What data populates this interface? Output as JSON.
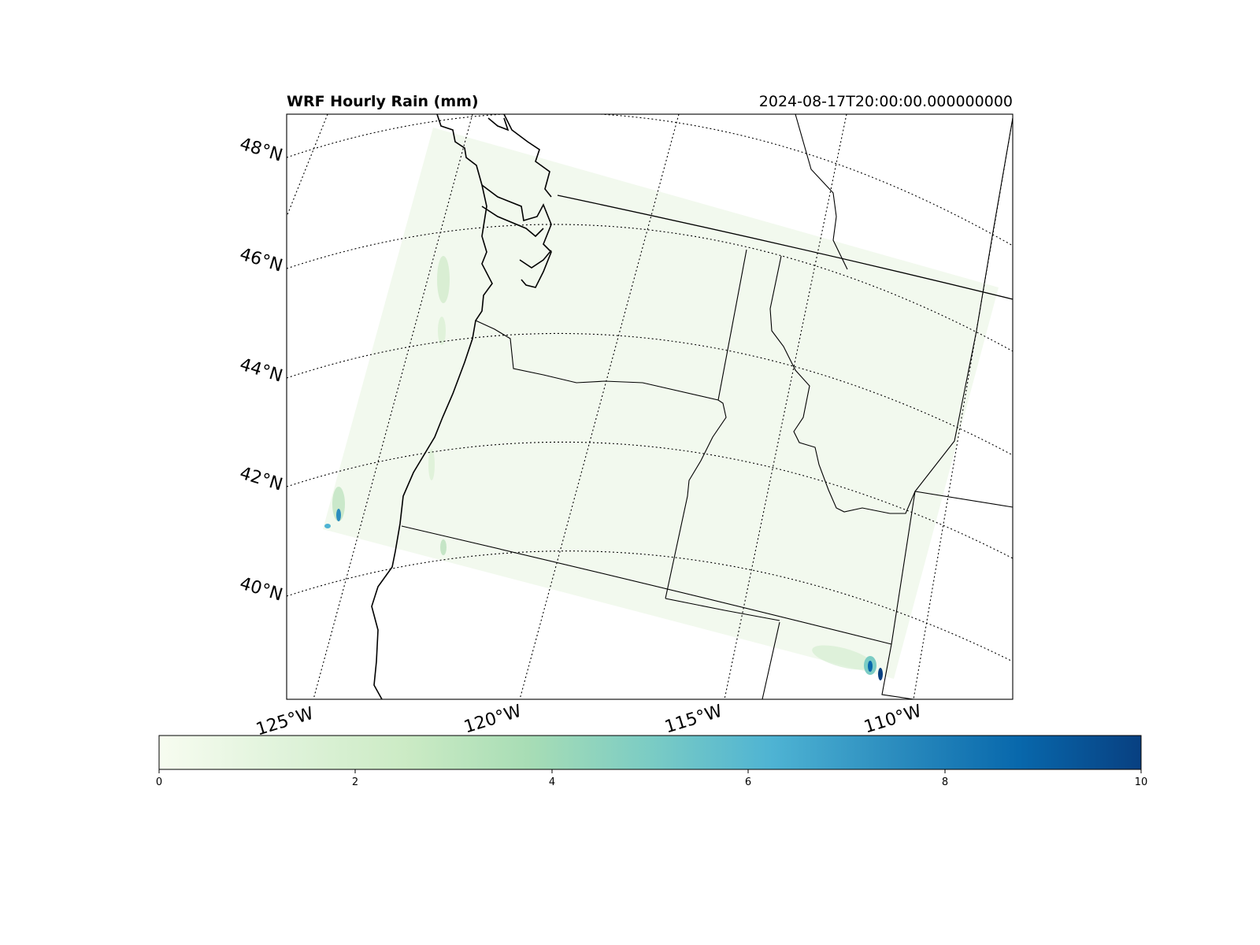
{
  "map": {
    "title": "WRF Hourly Rain (mm)",
    "timestamp": "2024-08-17T20:00:00.000000000",
    "lat_labels": [
      "48°N",
      "46°N",
      "44°N",
      "42°N",
      "40°N"
    ],
    "lon_labels": [
      "125°W",
      "120°W",
      "115°W",
      "110°W"
    ],
    "features": [
      "coastline",
      "state-borders",
      "country-border",
      "graticule",
      "wrf-domain"
    ]
  },
  "colorbar": {
    "colormap": "GnBu",
    "min": 0,
    "max": 10,
    "ticks": [
      "0",
      "2",
      "4",
      "6",
      "8",
      "10"
    ],
    "colors": [
      "#f7fcf0",
      "#e0f3db",
      "#ccebc5",
      "#a8ddb5",
      "#7bccc4",
      "#4eb3d3",
      "#2b8cbe",
      "#0868ac",
      "#084081"
    ]
  },
  "rain_cells": [
    {
      "location": "northern California coast",
      "max_mm": 10
    },
    {
      "location": "northern Nevada / Utah border",
      "max_mm": 10
    },
    {
      "location": "Washington Cascades",
      "max_mm": 2
    },
    {
      "location": "southern Oregon Cascades",
      "max_mm": 2
    }
  ]
}
